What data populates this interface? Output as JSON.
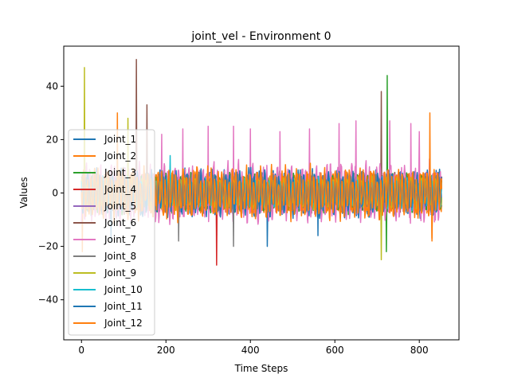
{
  "chart_data": {
    "type": "line",
    "title": "joint_vel - Environment 0",
    "xlabel": "Time Steps",
    "ylabel": "Values",
    "xlim": [
      -42,
      894
    ],
    "ylim": [
      -55,
      55
    ],
    "xticks": [
      0,
      200,
      400,
      600,
      800
    ],
    "yticks": [
      -40,
      -20,
      0,
      20,
      40
    ],
    "grid": false,
    "legend_position": "center-left",
    "n_steps": 854,
    "series": [
      {
        "name": "Joint_1",
        "color": "#1f77b4",
        "amp": 6,
        "noise": 0.5,
        "spikes": [
          [
            320,
            -16
          ],
          [
            440,
            -20
          ]
        ]
      },
      {
        "name": "Joint_2",
        "color": "#ff7f0e",
        "amp": 5,
        "noise": 0.5,
        "spikes": [
          [
            2,
            -22
          ],
          [
            830,
            -18
          ]
        ]
      },
      {
        "name": "Joint_3",
        "color": "#2ca02c",
        "amp": 5,
        "noise": 0.5,
        "spikes": [
          [
            724,
            44
          ],
          [
            722,
            -22
          ]
        ]
      },
      {
        "name": "Joint_4",
        "color": "#d62728",
        "amp": 4,
        "noise": 0.5,
        "spikes": [
          [
            320,
            -27
          ]
        ]
      },
      {
        "name": "Joint_5",
        "color": "#9467bd",
        "amp": 4,
        "noise": 0.5,
        "spikes": [
          [
            130,
            25
          ]
        ]
      },
      {
        "name": "Joint_6",
        "color": "#8c564b",
        "amp": 5,
        "noise": 0.5,
        "spikes": [
          [
            130,
            50
          ],
          [
            155,
            33
          ],
          [
            710,
            38
          ]
        ]
      },
      {
        "name": "Joint_7",
        "color": "#e377c2",
        "amp": 8,
        "noise": 0.5,
        "spikes": [
          [
            190,
            22
          ],
          [
            240,
            24
          ],
          [
            300,
            25
          ],
          [
            360,
            25
          ],
          [
            400,
            24
          ],
          [
            470,
            23
          ],
          [
            540,
            24
          ],
          [
            610,
            26
          ],
          [
            650,
            27
          ],
          [
            730,
            27
          ],
          [
            780,
            26
          ],
          [
            800,
            23
          ]
        ]
      },
      {
        "name": "Joint_8",
        "color": "#7f7f7f",
        "amp": 5,
        "noise": 0.5,
        "spikes": [
          [
            230,
            -18
          ],
          [
            360,
            -20
          ]
        ]
      },
      {
        "name": "Joint_9",
        "color": "#bcbd22",
        "amp": 4,
        "noise": 0.5,
        "spikes": [
          [
            7,
            47
          ],
          [
            110,
            28
          ],
          [
            710,
            -25
          ]
        ]
      },
      {
        "name": "Joint_10",
        "color": "#17becf",
        "amp": 4,
        "noise": 0.5,
        "spikes": [
          [
            210,
            14
          ]
        ]
      },
      {
        "name": "Joint_11",
        "color": "#1f77b4",
        "amp": 6,
        "noise": 0.5,
        "spikes": [
          [
            70,
            -18
          ],
          [
            560,
            -16
          ]
        ]
      },
      {
        "name": "Joint_12",
        "color": "#ff7f0e",
        "amp": 7,
        "noise": 0.5,
        "spikes": [
          [
            85,
            30
          ],
          [
            825,
            30
          ],
          [
            830,
            -17
          ]
        ]
      }
    ]
  }
}
